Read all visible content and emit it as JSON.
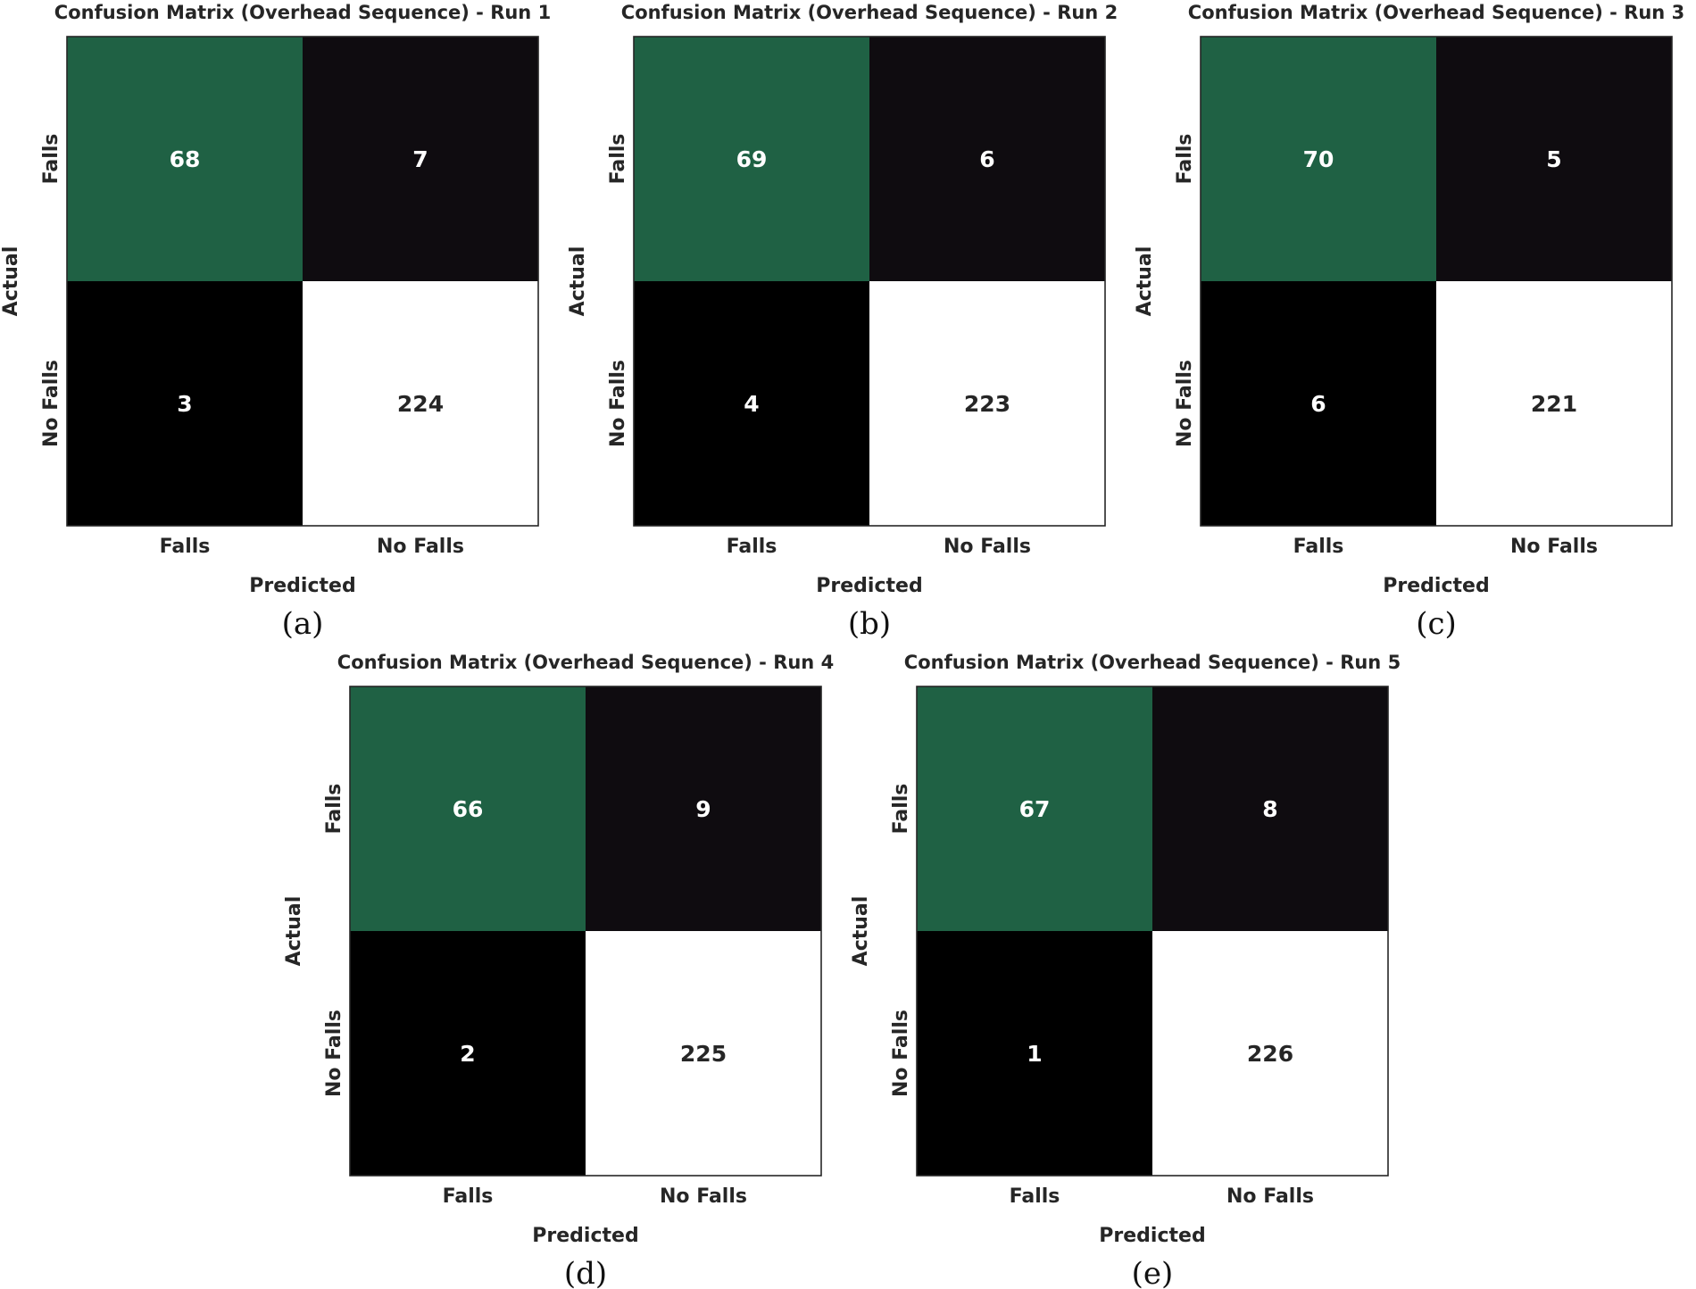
{
  "chart_data": [
    {
      "type": "heatmap",
      "title": "Confusion Matrix (Overhead Sequence) - Run 1",
      "xlabel": "Predicted",
      "ylabel": "Actual",
      "x_categories": [
        "Falls",
        "No Falls"
      ],
      "y_categories": [
        "Falls",
        "No Falls"
      ],
      "values": [
        [
          68,
          7
        ],
        [
          3,
          224
        ]
      ],
      "caption": "(a)"
    },
    {
      "type": "heatmap",
      "title": "Confusion Matrix (Overhead Sequence) - Run 2",
      "xlabel": "Predicted",
      "ylabel": "Actual",
      "x_categories": [
        "Falls",
        "No Falls"
      ],
      "y_categories": [
        "Falls",
        "No Falls"
      ],
      "values": [
        [
          69,
          6
        ],
        [
          4,
          223
        ]
      ],
      "caption": "(b)"
    },
    {
      "type": "heatmap",
      "title": "Confusion Matrix (Overhead Sequence) - Run 3",
      "xlabel": "Predicted",
      "ylabel": "Actual",
      "x_categories": [
        "Falls",
        "No Falls"
      ],
      "y_categories": [
        "Falls",
        "No Falls"
      ],
      "values": [
        [
          70,
          5
        ],
        [
          6,
          221
        ]
      ],
      "caption": "(c)"
    },
    {
      "type": "heatmap",
      "title": "Confusion Matrix (Overhead Sequence) - Run 4",
      "xlabel": "Predicted",
      "ylabel": "Actual",
      "x_categories": [
        "Falls",
        "No Falls"
      ],
      "y_categories": [
        "Falls",
        "No Falls"
      ],
      "values": [
        [
          66,
          9
        ],
        [
          2,
          225
        ]
      ],
      "caption": "(d)"
    },
    {
      "type": "heatmap",
      "title": "Confusion Matrix (Overhead Sequence) - Run 5",
      "xlabel": "Predicted",
      "ylabel": "Actual",
      "x_categories": [
        "Falls",
        "No Falls"
      ],
      "y_categories": [
        "Falls",
        "No Falls"
      ],
      "values": [
        [
          67,
          8
        ],
        [
          1,
          226
        ]
      ],
      "caption": "(e)"
    }
  ],
  "colors": {
    "true_positive": "#1f6144",
    "false_negative": "#0f0c10",
    "false_positive": "#000000",
    "true_negative": "#ffffff",
    "text_on_dark": "#ffffff",
    "text_on_light": "#262626",
    "frame": "#262626"
  }
}
